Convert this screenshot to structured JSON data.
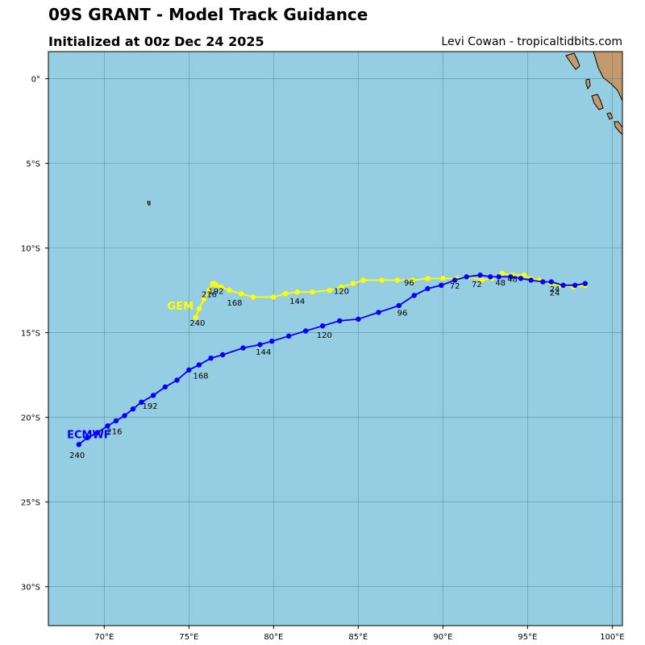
{
  "header": {
    "title": "09S GRANT - Model Track Guidance",
    "subtitle": "Initialized at 00z Dec 24 2025",
    "credit": "Levi Cowan - tropicaltidbits.com"
  },
  "map": {
    "ocean_color": "#95cde2",
    "land_color": "#c49a6c",
    "grid_color": "#4f7a86",
    "lon_labels": [
      "70°E",
      "75°E",
      "80°E",
      "85°E",
      "90°E",
      "95°E",
      "100°E"
    ],
    "lat_labels": [
      "0°",
      "5°S",
      "10°S",
      "15°S",
      "20°S",
      "25°S",
      "30°S"
    ],
    "lon_ticks": [
      70,
      75,
      80,
      85,
      90,
      95,
      100
    ],
    "lat_ticks": [
      0,
      -5,
      -10,
      -15,
      -20,
      -25,
      -30
    ],
    "lon_range": [
      66.7,
      100.6
    ],
    "lat_range": [
      1.6,
      -32.3
    ]
  },
  "tracks": [
    {
      "name": "GEM",
      "color": "#ffff00",
      "label_color": "#ffff00",
      "points": [
        [
          98.4,
          -12.2
        ],
        [
          97.7,
          -12.3
        ],
        [
          96.9,
          -12.2
        ],
        [
          96.4,
          -12.1
        ],
        [
          95.7,
          -11.9
        ],
        [
          95.2,
          -11.8
        ],
        [
          94.8,
          -11.6
        ],
        [
          94.1,
          -11.6
        ],
        [
          93.5,
          -11.5
        ],
        [
          92.9,
          -11.8
        ],
        [
          92.3,
          -11.9
        ],
        [
          91.5,
          -11.7
        ],
        [
          90.8,
          -11.8
        ],
        [
          90.0,
          -11.8
        ],
        [
          89.1,
          -11.8
        ],
        [
          88.2,
          -11.9
        ],
        [
          87.3,
          -11.9
        ],
        [
          86.4,
          -11.9
        ],
        [
          85.3,
          -11.9
        ],
        [
          84.7,
          -12.1
        ],
        [
          84.0,
          -12.3
        ],
        [
          83.3,
          -12.5
        ],
        [
          82.3,
          -12.6
        ],
        [
          81.4,
          -12.6
        ],
        [
          80.7,
          -12.7
        ],
        [
          80.0,
          -12.9
        ],
        [
          78.8,
          -12.9
        ],
        [
          78.1,
          -12.7
        ],
        [
          77.4,
          -12.5
        ],
        [
          76.9,
          -12.3
        ],
        [
          76.6,
          -12.2
        ],
        [
          76.5,
          -12.1
        ],
        [
          76.4,
          -12.1
        ],
        [
          76.2,
          -12.5
        ],
        [
          75.9,
          -13.0
        ],
        [
          75.6,
          -13.6
        ],
        [
          75.4,
          -14.1
        ]
      ],
      "labels": [
        {
          "text": "24",
          "lon": 96.6,
          "lat": -12.6
        },
        {
          "text": "48",
          "lon": 94.1,
          "lat": -12.0
        },
        {
          "text": "72",
          "lon": 92.0,
          "lat": -12.3
        },
        {
          "text": "96",
          "lon": 88.0,
          "lat": -12.2
        },
        {
          "text": "120",
          "lon": 84.0,
          "lat": -12.7
        },
        {
          "text": "144",
          "lon": 81.4,
          "lat": -13.3
        },
        {
          "text": "168",
          "lon": 77.7,
          "lat": -13.4
        },
        {
          "text": "192",
          "lon": 76.6,
          "lat": -12.7
        },
        {
          "text": "216",
          "lon": 76.2,
          "lat": -12.9
        },
        {
          "text": "240",
          "lon": 75.5,
          "lat": -14.6
        }
      ],
      "model_label": {
        "text": "GEM",
        "lon": 74.5,
        "lat": -13.4
      }
    },
    {
      "name": "ECMWF",
      "color": "#0000ff",
      "label_color": "#0000ff",
      "points": [
        [
          98.4,
          -12.1
        ],
        [
          97.8,
          -12.2
        ],
        [
          97.1,
          -12.2
        ],
        [
          96.4,
          -12.0
        ],
        [
          95.9,
          -12.0
        ],
        [
          95.2,
          -11.9
        ],
        [
          94.6,
          -11.8
        ],
        [
          94.0,
          -11.7
        ],
        [
          93.3,
          -11.7
        ],
        [
          92.8,
          -11.7
        ],
        [
          92.2,
          -11.6
        ],
        [
          91.4,
          -11.7
        ],
        [
          90.7,
          -11.9
        ],
        [
          89.9,
          -12.2
        ],
        [
          89.1,
          -12.4
        ],
        [
          88.3,
          -12.8
        ],
        [
          87.4,
          -13.4
        ],
        [
          86.2,
          -13.8
        ],
        [
          85.0,
          -14.2
        ],
        [
          83.9,
          -14.3
        ],
        [
          82.9,
          -14.6
        ],
        [
          81.9,
          -14.9
        ],
        [
          80.9,
          -15.2
        ],
        [
          79.9,
          -15.5
        ],
        [
          79.2,
          -15.7
        ],
        [
          78.2,
          -15.9
        ],
        [
          77.0,
          -16.3
        ],
        [
          76.3,
          -16.5
        ],
        [
          75.6,
          -16.9
        ],
        [
          75.0,
          -17.2
        ],
        [
          74.3,
          -17.8
        ],
        [
          73.6,
          -18.2
        ],
        [
          72.9,
          -18.7
        ],
        [
          72.2,
          -19.1
        ],
        [
          71.7,
          -19.5
        ],
        [
          71.2,
          -19.9
        ],
        [
          70.7,
          -20.2
        ],
        [
          70.2,
          -20.5
        ],
        [
          69.6,
          -20.9
        ],
        [
          69.0,
          -21.2
        ],
        [
          68.5,
          -21.6
        ]
      ],
      "labels": [
        {
          "text": "24",
          "lon": 96.6,
          "lat": -12.8
        },
        {
          "text": "48",
          "lon": 93.4,
          "lat": -12.2
        },
        {
          "text": "72",
          "lon": 90.7,
          "lat": -12.4
        },
        {
          "text": "96",
          "lon": 87.6,
          "lat": -14.0
        },
        {
          "text": "120",
          "lon": 83.0,
          "lat": -15.3
        },
        {
          "text": "144",
          "lon": 79.4,
          "lat": -16.3
        },
        {
          "text": "168",
          "lon": 75.7,
          "lat": -17.7
        },
        {
          "text": "192",
          "lon": 72.7,
          "lat": -19.5
        },
        {
          "text": "216",
          "lon": 70.6,
          "lat": -21.0
        },
        {
          "text": "240",
          "lon": 68.4,
          "lat": -22.4
        }
      ],
      "model_label": {
        "text": "ECMWF",
        "lon": 69.1,
        "lat": -21.0
      }
    }
  ]
}
